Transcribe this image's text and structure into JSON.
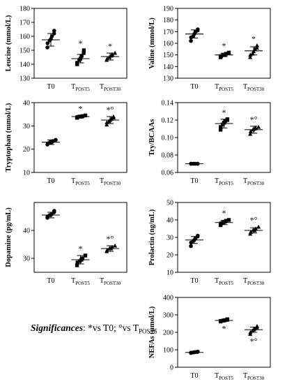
{
  "significance_note": {
    "lead": "Significances",
    "colon": ": ",
    "star": "*",
    "star_text": "vs T0; ",
    "circle": "°",
    "circle_text": "vs T",
    "circle_sub": "POST5"
  },
  "chart_data": [
    {
      "type": "scatter",
      "ylabel": "Leucine (mmol/L)",
      "ylim": [
        130,
        180
      ],
      "yticks": [
        130,
        140,
        150,
        160,
        170,
        180
      ],
      "categories": [
        {
          "main": "T0",
          "sub": ""
        },
        {
          "main": "T",
          "sub": "POST5"
        },
        {
          "main": "T",
          "sub": "POST30"
        }
      ],
      "marker": [
        "circle",
        "square",
        "triangle"
      ],
      "groups": [
        {
          "mean": 157.5,
          "sd": 4.5,
          "points": [
            152,
            155,
            157,
            158,
            160,
            162,
            164
          ],
          "annotation": ""
        },
        {
          "mean": 144,
          "sd": 3,
          "points": [
            140,
            141,
            143,
            144,
            146,
            148,
            150
          ],
          "annotation": "*"
        },
        {
          "mean": 145.5,
          "sd": 2.5,
          "points": [
            143,
            144,
            145,
            146,
            147,
            148
          ],
          "annotation": "*"
        }
      ]
    },
    {
      "type": "scatter",
      "ylabel": "Valine (mmol/L)",
      "ylim": [
        130,
        190
      ],
      "yticks": [
        130,
        140,
        150,
        160,
        170,
        180,
        190
      ],
      "categories": [
        {
          "main": "T0",
          "sub": ""
        },
        {
          "main": "T",
          "sub": "POST5"
        },
        {
          "main": "T",
          "sub": "POST30"
        }
      ],
      "marker": [
        "circle",
        "square",
        "triangle"
      ],
      "groups": [
        {
          "mean": 168,
          "sd": 3.5,
          "points": [
            162,
            165,
            166,
            168,
            170,
            171,
            172
          ],
          "annotation": ""
        },
        {
          "mean": 150,
          "sd": 1.5,
          "points": [
            148,
            149,
            150,
            150,
            151,
            152
          ],
          "annotation": "*"
        },
        {
          "mean": 153.5,
          "sd": 3.5,
          "points": [
            148,
            150,
            151,
            153,
            155,
            156,
            158
          ],
          "annotation": "*"
        }
      ]
    },
    {
      "type": "scatter",
      "ylabel": "Tryptophan (mmol/L)",
      "ylim": [
        10,
        40
      ],
      "yticks": [
        10,
        20,
        30,
        40
      ],
      "categories": [
        {
          "main": "T0",
          "sub": ""
        },
        {
          "main": "T",
          "sub": "POST5"
        },
        {
          "main": "T",
          "sub": "POST30"
        }
      ],
      "marker": [
        "circle",
        "square",
        "triangle"
      ],
      "groups": [
        {
          "mean": 23,
          "sd": 1,
          "points": [
            22,
            22.5,
            23,
            23,
            23.5,
            24
          ],
          "annotation": ""
        },
        {
          "mean": 34,
          "sd": 0.5,
          "points": [
            33.5,
            33.8,
            34,
            34,
            34.2,
            34.5
          ],
          "annotation": "*"
        },
        {
          "mean": 32.5,
          "sd": 1.5,
          "points": [
            30.5,
            31.5,
            32,
            32.5,
            33,
            33.5,
            34
          ],
          "annotation": "*°"
        }
      ]
    },
    {
      "type": "scatter",
      "ylabel": "Try/BCAAs",
      "ylim": [
        0.06,
        0.14
      ],
      "yticks": [
        0.06,
        0.08,
        0.1,
        0.12,
        0.14
      ],
      "categories": [
        {
          "main": "T0",
          "sub": ""
        },
        {
          "main": "T",
          "sub": "POST5"
        },
        {
          "main": "T",
          "sub": "POST30"
        }
      ],
      "marker": [
        "circle",
        "square",
        "triangle"
      ],
      "groups": [
        {
          "mean": 0.07,
          "sd": 0,
          "points": [
            0.07,
            0.07,
            0.07,
            0.07,
            0.07,
            0.07,
            0.07
          ],
          "annotation": ""
        },
        {
          "mean": 0.116,
          "sd": 0.005,
          "points": [
            0.109,
            0.112,
            0.115,
            0.117,
            0.119,
            0.12,
            0.121
          ],
          "annotation": "*"
        },
        {
          "mean": 0.109,
          "sd": 0.004,
          "points": [
            0.104,
            0.107,
            0.109,
            0.11,
            0.111,
            0.112
          ],
          "annotation": "*°"
        }
      ]
    },
    {
      "type": "scatter",
      "ylabel": "Dopamine (pg/mL)",
      "ylim": [
        25,
        50
      ],
      "yticks": [
        30,
        40
      ],
      "categories": [
        {
          "main": "T0",
          "sub": ""
        },
        {
          "main": "T",
          "sub": "POST5"
        },
        {
          "main": "T",
          "sub": "POST30"
        }
      ],
      "marker": [
        "circle",
        "square",
        "triangle"
      ],
      "groups": [
        {
          "mean": 45.5,
          "sd": 1,
          "points": [
            44.5,
            45,
            45.5,
            45.5,
            46,
            46.5,
            47
          ],
          "annotation": ""
        },
        {
          "mean": 29.5,
          "sd": 1.5,
          "points": [
            27.5,
            28.5,
            29,
            29.5,
            30,
            31
          ],
          "annotation": "*"
        },
        {
          "mean": 33.5,
          "sd": 1,
          "points": [
            32.5,
            33,
            33.5,
            33.5,
            34,
            34.5
          ],
          "annotation": "*°"
        }
      ]
    },
    {
      "type": "scatter",
      "ylabel": "Prolactin (ng/mL)",
      "ylim": [
        10,
        50
      ],
      "yticks": [
        10,
        20,
        30,
        40,
        50
      ],
      "categories": [
        {
          "main": "T0",
          "sub": ""
        },
        {
          "main": "T",
          "sub": "POST5"
        },
        {
          "main": "T",
          "sub": "POST30"
        }
      ],
      "marker": [
        "circle",
        "square",
        "triangle"
      ],
      "groups": [
        {
          "mean": 28.5,
          "sd": 2,
          "points": [
            25,
            27,
            28,
            28.5,
            29.5,
            30.5,
            31
          ],
          "annotation": ""
        },
        {
          "mean": 38.5,
          "sd": 1.2,
          "points": [
            37,
            38,
            38.5,
            39,
            39.5,
            40
          ],
          "annotation": "*"
        },
        {
          "mean": 34,
          "sd": 1.5,
          "points": [
            32,
            33,
            34,
            34,
            35,
            36
          ],
          "annotation": "*°"
        }
      ]
    },
    {
      "type": "scatter",
      "ylabel": "NEFAs (µmol/L)",
      "ylim": [
        0,
        400
      ],
      "yticks": [
        0,
        100,
        200,
        300,
        400
      ],
      "categories": [
        {
          "main": "T0",
          "sub": ""
        },
        {
          "main": "T",
          "sub": "POST5"
        },
        {
          "main": "T",
          "sub": "POST30"
        }
      ],
      "marker": [
        "circle",
        "square",
        "triangle"
      ],
      "groups": [
        {
          "mean": 85,
          "sd": 3,
          "points": [
            82,
            84,
            85,
            86,
            87,
            88,
            90
          ],
          "annotation": ""
        },
        {
          "mean": 268,
          "sd": 5,
          "points": [
            262,
            265,
            267,
            268,
            270,
            272,
            275
          ],
          "annotation": "*",
          "annotation_below": true
        },
        {
          "mean": 215,
          "sd": 15,
          "points": [
            190,
            200,
            210,
            215,
            220,
            228,
            235
          ],
          "annotation": "*°",
          "annotation_below": true
        }
      ]
    }
  ]
}
